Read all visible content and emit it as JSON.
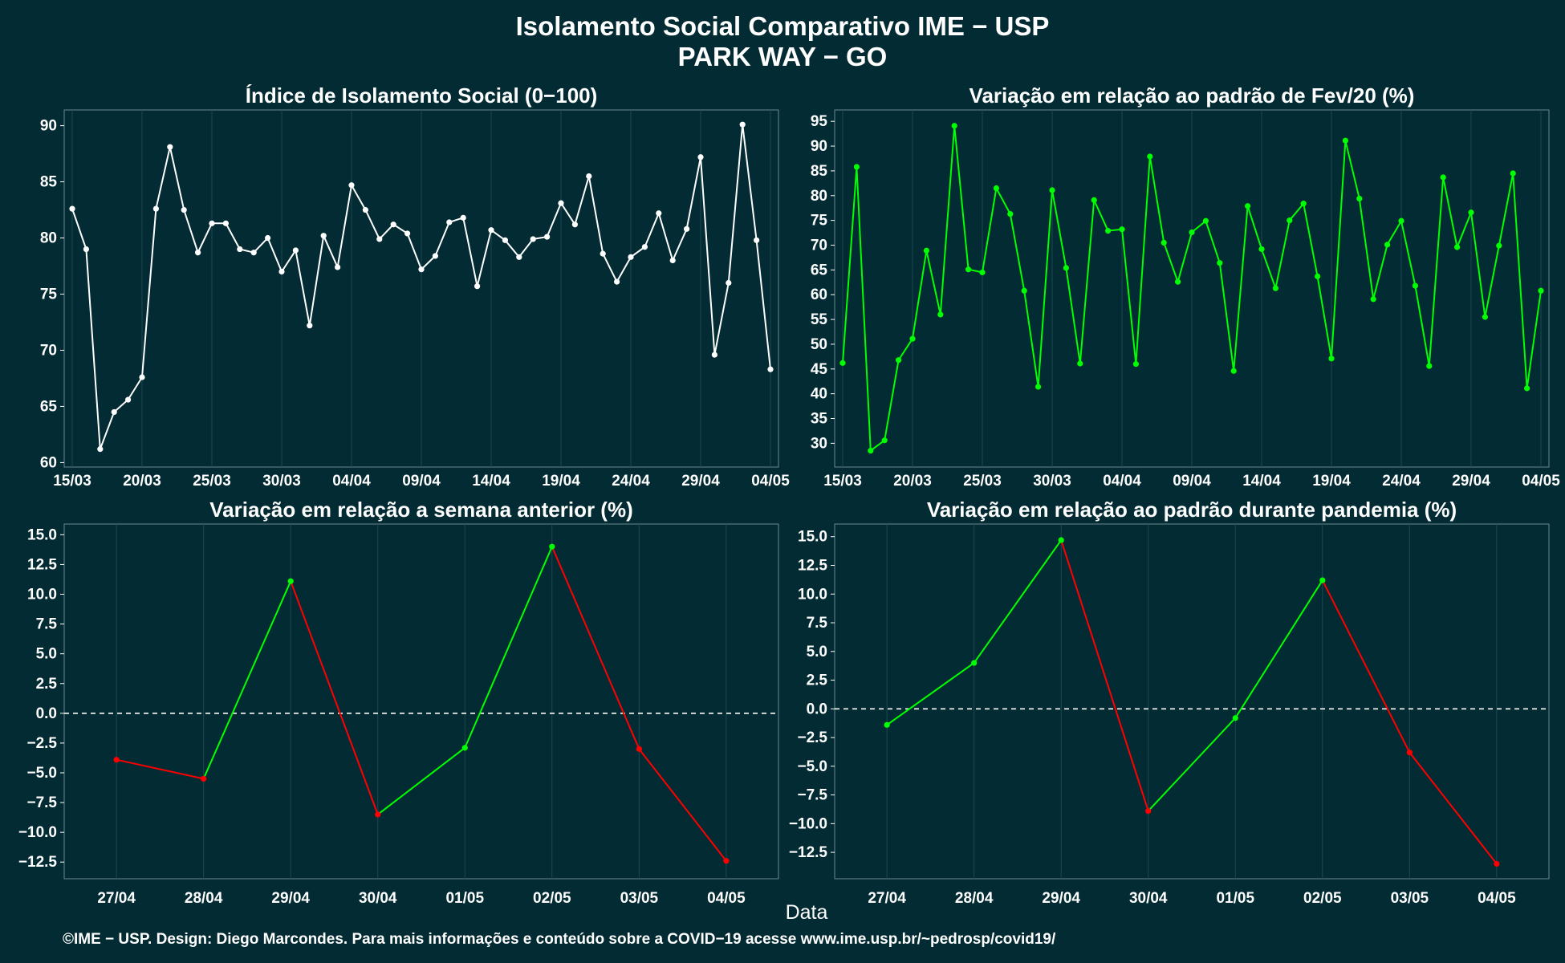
{
  "header": {
    "title": "Isolamento Social Comparativo IME − USP",
    "subtitle": "PARK WAY − GO"
  },
  "xlabel": "Data",
  "footer": "©IME − USP. Design: Diego Marcondes. Para mais informações e conteúdo sobre a COVID−19 acesse www.ime.usp.br/~pedrosp/covid19/",
  "colors": {
    "background": "#032b33",
    "index_line": "#ffffff",
    "feb_line": "#00ff00",
    "positive": "#00ff00",
    "negative": "#ff0000",
    "grid": "#1d4a52",
    "zero_line": "#ffffff"
  },
  "chart_data": [
    {
      "id": "index",
      "type": "line",
      "title": "Índice de Isolamento Social (0−100)",
      "x_days": [
        "15/03",
        "16/03",
        "17/03",
        "18/03",
        "19/03",
        "20/03",
        "21/03",
        "22/03",
        "23/03",
        "24/03",
        "25/03",
        "26/03",
        "27/03",
        "28/03",
        "29/03",
        "30/03",
        "31/03",
        "01/04",
        "02/04",
        "03/04",
        "04/04",
        "05/04",
        "06/04",
        "07/04",
        "08/04",
        "09/04",
        "10/04",
        "11/04",
        "12/04",
        "13/04",
        "14/04",
        "15/04",
        "16/04",
        "17/04",
        "18/04",
        "19/04",
        "20/04",
        "21/04",
        "22/04",
        "23/04",
        "24/04",
        "25/04",
        "26/04",
        "27/04",
        "28/04",
        "29/04",
        "30/04",
        "01/05",
        "02/05",
        "03/05",
        "04/05"
      ],
      "xticks": [
        "15/03",
        "20/03",
        "25/03",
        "30/03",
        "04/04",
        "09/04",
        "14/04",
        "19/04",
        "24/04",
        "29/04",
        "04/05"
      ],
      "values": [
        82.6,
        79.0,
        61.2,
        64.5,
        65.6,
        67.6,
        82.6,
        88.1,
        82.5,
        78.7,
        81.3,
        81.3,
        79.0,
        78.7,
        80.0,
        77.0,
        78.9,
        72.2,
        80.2,
        77.4,
        84.7,
        82.5,
        79.9,
        81.2,
        80.4,
        77.2,
        78.4,
        81.4,
        81.8,
        75.7,
        80.7,
        79.8,
        78.3,
        79.9,
        80.1,
        83.1,
        81.2,
        85.5,
        78.6,
        76.1,
        78.3,
        79.2,
        82.2,
        78.0,
        80.8,
        87.2,
        69.6,
        76.0,
        90.1,
        79.8,
        68.3
      ],
      "yticks": [
        "60",
        "65",
        "70",
        "75",
        "80",
        "85",
        "90"
      ],
      "ylim": [
        59.6,
        91.4
      ],
      "color": "#ffffff"
    },
    {
      "id": "feb",
      "type": "line",
      "title": "Variação em relação ao padrão de Fev/20 (%)",
      "x_days": [
        "15/03",
        "16/03",
        "17/03",
        "18/03",
        "19/03",
        "20/03",
        "21/03",
        "22/03",
        "23/03",
        "24/03",
        "25/03",
        "26/03",
        "27/03",
        "28/03",
        "29/03",
        "30/03",
        "31/03",
        "01/04",
        "02/04",
        "03/04",
        "04/04",
        "05/04",
        "06/04",
        "07/04",
        "08/04",
        "09/04",
        "10/04",
        "11/04",
        "12/04",
        "13/04",
        "14/04",
        "15/04",
        "16/04",
        "17/04",
        "18/04",
        "19/04",
        "20/04",
        "21/04",
        "22/04",
        "23/04",
        "24/04",
        "25/04",
        "26/04",
        "27/04",
        "28/04",
        "29/04",
        "30/04",
        "01/05",
        "02/05",
        "03/05",
        "04/05"
      ],
      "xticks": [
        "15/03",
        "20/03",
        "25/03",
        "30/03",
        "04/04",
        "09/04",
        "14/04",
        "19/04",
        "24/04",
        "29/04",
        "04/05"
      ],
      "values": [
        46.2,
        85.8,
        28.5,
        30.6,
        46.8,
        51.1,
        68.9,
        56.0,
        94.1,
        65.1,
        64.5,
        81.5,
        76.3,
        60.8,
        41.4,
        81.1,
        65.4,
        46.1,
        79.1,
        72.9,
        73.2,
        46.0,
        87.9,
        70.5,
        62.6,
        72.6,
        74.9,
        66.4,
        44.6,
        77.9,
        69.2,
        61.3,
        75.0,
        78.4,
        63.7,
        47.1,
        91.1,
        79.4,
        59.1,
        70.1,
        74.9,
        61.8,
        45.6,
        83.7,
        69.6,
        76.6,
        55.5,
        69.9,
        84.5,
        41.1,
        60.8
      ],
      "yticks": [
        "30",
        "35",
        "40",
        "45",
        "50",
        "55",
        "60",
        "65",
        "70",
        "75",
        "80",
        "85",
        "90",
        "95"
      ],
      "ylim": [
        25.2,
        97.3
      ],
      "color": "#00ff00"
    },
    {
      "id": "week",
      "type": "line",
      "title": "Variação em relação a semana anterior (%)",
      "x": [
        "27/04",
        "28/04",
        "29/04",
        "30/04",
        "01/05",
        "02/05",
        "03/05",
        "04/05"
      ],
      "values": [
        -3.9,
        -5.5,
        11.1,
        -8.5,
        -2.9,
        14.0,
        -3.0,
        -12.4
      ],
      "yticks": [
        "−12.5",
        "−10.0",
        "−7.5",
        "−5.0",
        "−2.5",
        "0.0",
        "2.5",
        "5.0",
        "7.5",
        "10.0",
        "12.5",
        "15.0"
      ],
      "ylim": [
        -13.9,
        15.9
      ]
    },
    {
      "id": "pandemic",
      "type": "line",
      "title": "Variação em relação ao padrão durante pandemia (%)",
      "x": [
        "27/04",
        "28/04",
        "29/04",
        "30/04",
        "01/05",
        "02/05",
        "03/05",
        "04/05"
      ],
      "values": [
        -1.4,
        4.0,
        14.7,
        -8.9,
        -0.8,
        11.2,
        -3.8,
        -13.5
      ],
      "yticks": [
        "−12.5",
        "−10.0",
        "−7.5",
        "−5.0",
        "−2.5",
        "0.0",
        "2.5",
        "5.0",
        "7.5",
        "10.0",
        "12.5",
        "15.0"
      ],
      "ylim": [
        -14.8,
        16.1
      ]
    }
  ]
}
